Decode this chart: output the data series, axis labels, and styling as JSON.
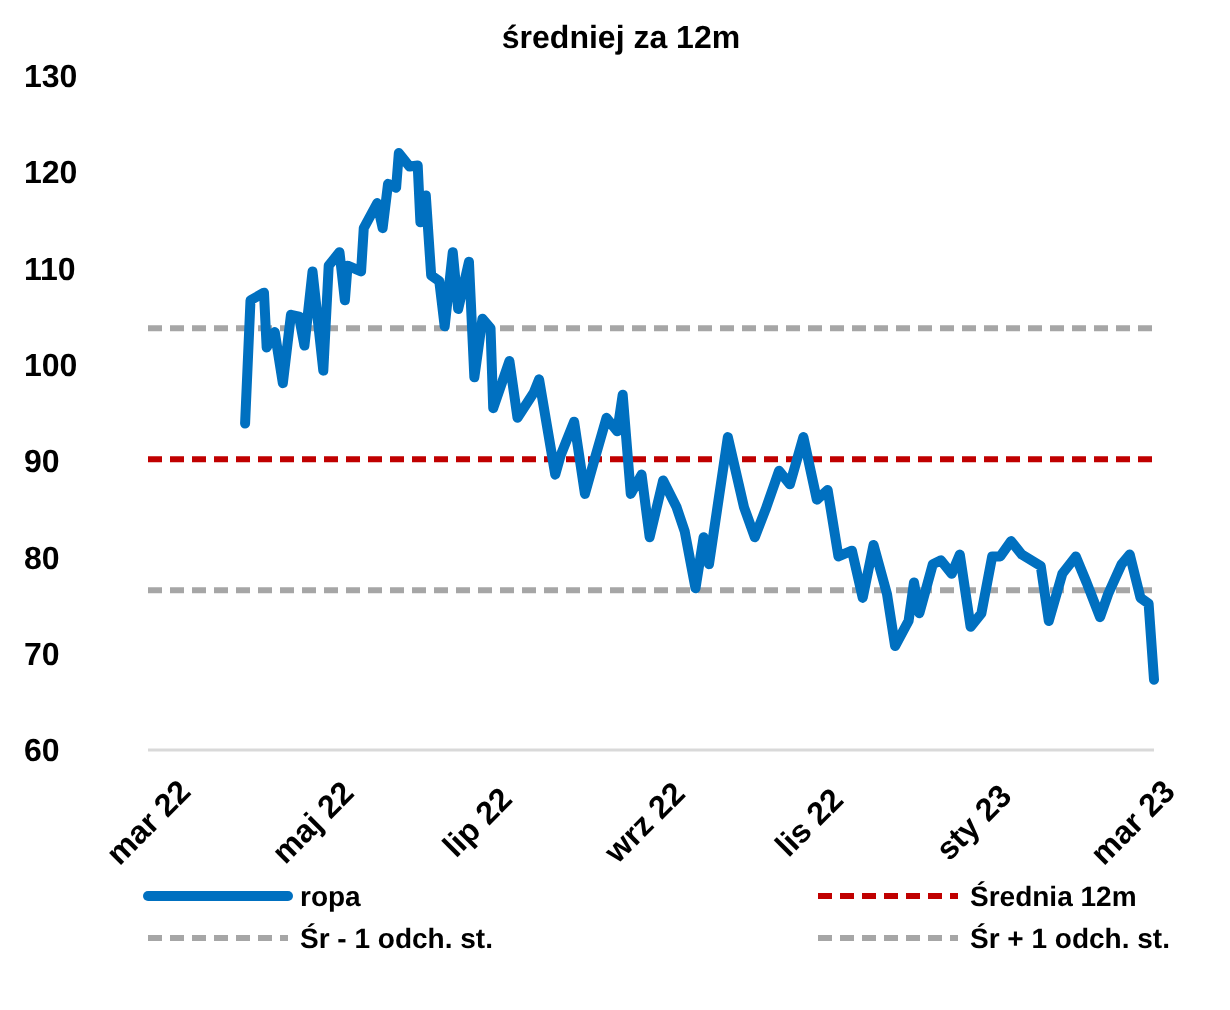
{
  "chart_data": {
    "type": "line",
    "title": "średniej za 12m",
    "xlim": [
      "2022-03-01",
      "2023-03-09"
    ],
    "xticks": [
      {
        "value": "2022-03-01",
        "label": "mar 22"
      },
      {
        "value": "2022-05-01",
        "label": "maj 22"
      },
      {
        "value": "2022-07-01",
        "label": "lip 22"
      },
      {
        "value": "2022-09-01",
        "label": "wrz 22"
      },
      {
        "value": "2022-11-01",
        "label": "lis 22"
      },
      {
        "value": "2023-01-01",
        "label": "sty 23"
      },
      {
        "value": "2023-03-01",
        "label": "mar 23"
      }
    ],
    "ylim": [
      60,
      130
    ],
    "yticks": [
      60,
      70,
      80,
      90,
      100,
      110,
      120,
      130
    ],
    "grid": false,
    "legend": "bottom",
    "line_style": "solid",
    "series": [
      {
        "name": "ropa",
        "color": "#0070c0",
        "x": [
          "2022-04-06",
          "2022-04-08",
          "2022-04-13",
          "2022-04-14",
          "2022-04-17",
          "2022-04-20",
          "2022-04-23",
          "2022-04-26",
          "2022-04-28",
          "2022-05-01",
          "2022-05-05",
          "2022-05-07",
          "2022-05-11",
          "2022-05-13",
          "2022-05-14",
          "2022-05-19",
          "2022-05-20",
          "2022-05-25",
          "2022-05-27",
          "2022-05-29",
          "2022-06-01",
          "2022-06-02",
          "2022-06-06",
          "2022-06-09",
          "2022-06-10",
          "2022-06-12",
          "2022-06-14",
          "2022-06-17",
          "2022-06-19",
          "2022-06-22",
          "2022-06-24",
          "2022-06-28",
          "2022-06-30",
          "2022-07-03",
          "2022-07-06",
          "2022-07-07",
          "2022-07-13",
          "2022-07-16",
          "2022-07-22",
          "2022-07-24",
          "2022-07-30",
          "2022-08-01",
          "2022-08-06",
          "2022-08-10",
          "2022-08-14",
          "2022-08-18",
          "2022-08-22",
          "2022-08-24",
          "2022-08-27",
          "2022-08-31",
          "2022-09-03",
          "2022-09-08",
          "2022-09-13",
          "2022-09-16",
          "2022-09-20",
          "2022-09-23",
          "2022-09-25",
          "2022-10-02",
          "2022-10-08",
          "2022-10-12",
          "2022-10-16",
          "2022-10-21",
          "2022-10-25",
          "2022-10-30",
          "2022-11-04",
          "2022-11-08",
          "2022-11-12",
          "2022-11-17",
          "2022-11-21",
          "2022-11-25",
          "2022-11-30",
          "2022-12-03",
          "2022-12-08",
          "2022-12-10",
          "2022-12-12",
          "2022-12-17",
          "2022-12-20",
          "2022-12-24",
          "2022-12-27",
          "2022-12-31",
          "2023-01-04",
          "2023-01-08",
          "2023-01-11",
          "2023-01-15",
          "2023-01-19",
          "2023-01-26",
          "2023-01-29",
          "2023-02-03",
          "2023-02-08",
          "2023-02-12",
          "2023-02-17",
          "2023-02-20",
          "2023-02-25",
          "2023-02-28",
          "2023-03-04",
          "2023-03-07",
          "2023-03-09"
        ],
        "values": [
          93.9,
          106.7,
          107.5,
          101.8,
          103.4,
          98.1,
          105.2,
          105,
          102,
          109.7,
          99.4,
          110.3,
          111.7,
          106.7,
          110.3,
          109.7,
          114.2,
          116.8,
          114.2,
          118.8,
          118.4,
          122,
          120.6,
          120.7,
          114.8,
          117.6,
          109.3,
          108.7,
          104,
          111.7,
          105.8,
          110.7,
          98.7,
          104.8,
          103.8,
          95.5,
          100.4,
          94.5,
          97.1,
          98.5,
          88.6,
          90.6,
          94.1,
          86.6,
          90.6,
          94.5,
          93.1,
          96.9,
          86.6,
          88.6,
          82.1,
          88,
          85.2,
          82.7,
          76.8,
          82.1,
          79.3,
          92.5,
          85.2,
          82.1,
          85,
          89,
          87.6,
          92.5,
          86,
          87,
          80.1,
          80.7,
          75.8,
          81.3,
          76.2,
          70.8,
          73.4,
          77.4,
          74.2,
          79.3,
          79.7,
          78.3,
          80.3,
          72.8,
          74.2,
          80.1,
          80.1,
          81.7,
          80.3,
          79.1,
          73.4,
          78.3,
          80.1,
          77.4,
          73.8,
          76.2,
          79.3,
          80.3,
          75.8,
          75.2,
          67.3
        ]
      }
    ],
    "ref_lines": [
      {
        "axis": "y",
        "value": 90.2,
        "label": "Średnia 12m",
        "color": "#c00000",
        "line_style": "dashed"
      },
      {
        "axis": "y",
        "value": 76.6,
        "label": "Śr - 1 odch. st.",
        "color": "#a6a6a6",
        "line_style": "dashed"
      },
      {
        "axis": "y",
        "value": 103.8,
        "label": "Śr + 1 odch. st.",
        "color": "#a6a6a6",
        "line_style": "dashed"
      }
    ]
  }
}
